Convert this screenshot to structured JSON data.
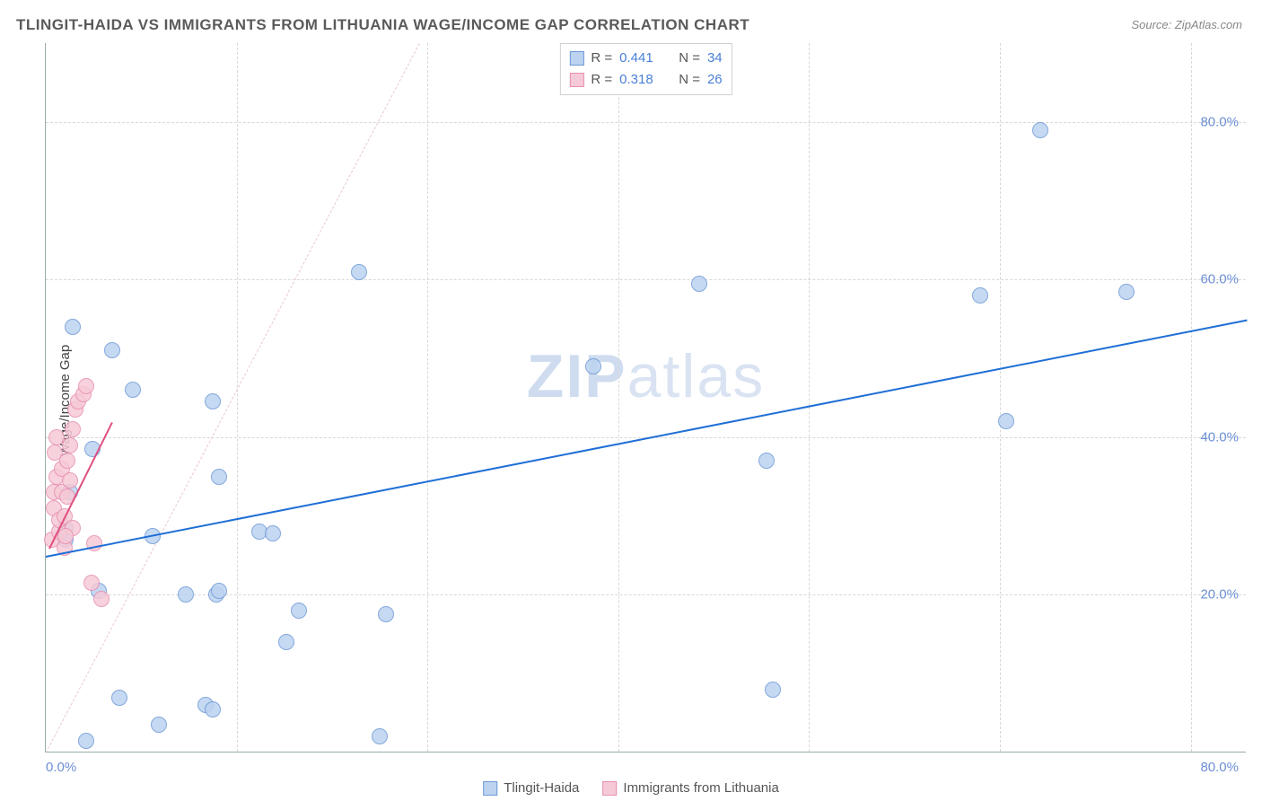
{
  "title": "TLINGIT-HAIDA VS IMMIGRANTS FROM LITHUANIA WAGE/INCOME GAP CORRELATION CHART",
  "source": "Source: ZipAtlas.com",
  "ylabel": "Wage/Income Gap",
  "watermark_a": "ZIP",
  "watermark_b": "atlas",
  "chart": {
    "type": "scatter",
    "xlim": [
      0,
      90
    ],
    "ylim": [
      0,
      90
    ],
    "xtick_labels": [
      "0.0%",
      "80.0%"
    ],
    "xtick_positions": [
      0,
      80
    ],
    "ytick_labels": [
      "20.0%",
      "40.0%",
      "60.0%",
      "80.0%"
    ],
    "ytick_positions": [
      20,
      40,
      60,
      80
    ],
    "grid_y": [
      20,
      40,
      60,
      80
    ],
    "grid_x": [
      14.3,
      28.6,
      42.9,
      57.2,
      71.5,
      85.8
    ],
    "grid_color": "#d8d8d8",
    "background_color": "#ffffff",
    "axis_color": "#99aaaa",
    "tick_color": "#6b8fd4",
    "marker_radius": 9,
    "marker_border_width": 1.2
  },
  "series": [
    {
      "name": "Tlingit-Haida",
      "fill": "#bcd3f0",
      "stroke": "#6e99d6",
      "legend_fill": "#bcd3f0",
      "legend_stroke": "#6e99d6",
      "R": "0.441",
      "N": "34",
      "trend": {
        "x1": 0,
        "y1": 25,
        "x2": 90,
        "y2": 55,
        "color": "#1f6fd6",
        "width": 2
      },
      "guide": {
        "x1": 0,
        "y1": 0,
        "x2": 28,
        "y2": 90,
        "color": "#eac7d0",
        "dashed": true,
        "width": 1
      },
      "points": [
        [
          1.5,
          27
        ],
        [
          1.5,
          28.5
        ],
        [
          1.8,
          33
        ],
        [
          2,
          54
        ],
        [
          3,
          1.5
        ],
        [
          3.5,
          38.5
        ],
        [
          4,
          20.5
        ],
        [
          5,
          51
        ],
        [
          6.5,
          46
        ],
        [
          8,
          27.5
        ],
        [
          10.5,
          20
        ],
        [
          12,
          6
        ],
        [
          12.5,
          5.5
        ],
        [
          12.5,
          44.5
        ],
        [
          12.8,
          20
        ],
        [
          13,
          20.5
        ],
        [
          13,
          35
        ],
        [
          16,
          28
        ],
        [
          17,
          27.8
        ],
        [
          18,
          14
        ],
        [
          19,
          18
        ],
        [
          23.5,
          61
        ],
        [
          25,
          2
        ],
        [
          25.5,
          17.5
        ],
        [
          41,
          49
        ],
        [
          49,
          59.5
        ],
        [
          54,
          37
        ],
        [
          54.5,
          8
        ],
        [
          70,
          58
        ],
        [
          72,
          42
        ],
        [
          74.5,
          79
        ],
        [
          81,
          58.5
        ],
        [
          5.5,
          7
        ],
        [
          8.5,
          3.5
        ]
      ]
    },
    {
      "name": "Immigrants from Lithuania",
      "fill": "#f6c9d6",
      "stroke": "#e78fb0",
      "legend_fill": "#f6c9d6",
      "legend_stroke": "#e78fb0",
      "R": "0.318",
      "N": "26",
      "trend": {
        "x1": 0.3,
        "y1": 26,
        "x2": 5,
        "y2": 42,
        "color": "#e05080",
        "width": 2
      },
      "points": [
        [
          0.5,
          27
        ],
        [
          0.6,
          31
        ],
        [
          0.6,
          33
        ],
        [
          0.7,
          38
        ],
        [
          0.8,
          35
        ],
        [
          0.8,
          40
        ],
        [
          1.0,
          28
        ],
        [
          1.0,
          29.5
        ],
        [
          1.2,
          33
        ],
        [
          1.2,
          36
        ],
        [
          1.4,
          26
        ],
        [
          1.4,
          30
        ],
        [
          1.6,
          32.5
        ],
        [
          1.6,
          37
        ],
        [
          1.8,
          34.5
        ],
        [
          1.8,
          39
        ],
        [
          2.0,
          28.5
        ],
        [
          2.0,
          41
        ],
        [
          2.2,
          43.5
        ],
        [
          2.4,
          44.5
        ],
        [
          2.8,
          45.5
        ],
        [
          3.0,
          46.5
        ],
        [
          3.4,
          21.5
        ],
        [
          3.6,
          26.5
        ],
        [
          4.2,
          19.5
        ],
        [
          1.5,
          27.5
        ]
      ]
    }
  ],
  "stats_labels": {
    "R": "R =",
    "N": "N ="
  },
  "legend": {
    "items": [
      "Tlingit-Haida",
      "Immigrants from Lithuania"
    ]
  }
}
